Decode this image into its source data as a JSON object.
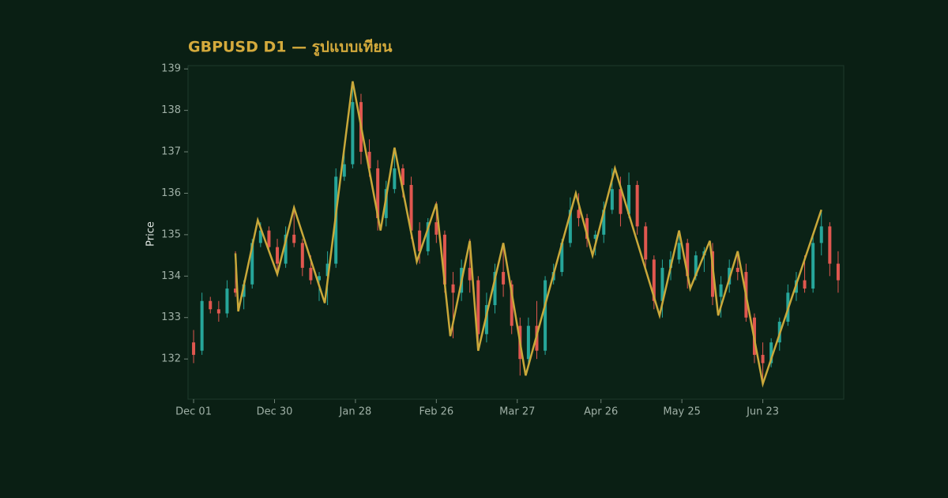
{
  "chart_data": {
    "type": "candlestick",
    "title": "GBPUSD D1 — รูปแบบเทียน",
    "ylabel": "Price",
    "up_color": "#26a69a",
    "down_color": "#e0574f",
    "x": [
      "Dec 01",
      "Dec 04",
      "Dec 07",
      "Dec 10",
      "Dec 13",
      "Dec 16",
      "Dec 19",
      "Dec 22",
      "Dec 25",
      "Dec 28",
      "Dec 31",
      "Jan 03",
      "Jan 06",
      "Jan 09",
      "Jan 12",
      "Jan 15",
      "Jan 18",
      "Jan 21",
      "Jan 24",
      "Jan 27",
      "Jan 30",
      "Feb 02",
      "Feb 05",
      "Feb 08",
      "Feb 11",
      "Feb 14",
      "Feb 17",
      "Feb 20",
      "Feb 23",
      "Feb 26",
      "Mar 01",
      "Mar 04",
      "Mar 07",
      "Mar 10",
      "Mar 13",
      "Mar 16",
      "Mar 19",
      "Mar 22",
      "Mar 25",
      "Mar 28",
      "Mar 31",
      "Apr 03",
      "Apr 06",
      "Apr 09",
      "Apr 12",
      "Apr 15",
      "Apr 18",
      "Apr 21",
      "Apr 24",
      "Apr 27",
      "Apr 30",
      "May 03",
      "May 06",
      "May 09",
      "May 12",
      "May 15",
      "May 18",
      "May 21",
      "May 24",
      "May 27",
      "May 30",
      "Jun 02",
      "Jun 05",
      "Jun 08",
      "Jun 11",
      "Jun 14",
      "Jun 17",
      "Jun 20",
      "Jun 23",
      "Jun 26",
      "Jun 29",
      "Jul 02",
      "Jul 05",
      "Jul 08",
      "Jul 11",
      "Jul 14",
      "Jul 17",
      "Jul 20"
    ],
    "open": [
      132.4,
      132.2,
      133.4,
      133.2,
      133.1,
      133.7,
      133.5,
      133.8,
      134.8,
      135.1,
      134.7,
      134.3,
      135.0,
      134.8,
      134.2,
      133.9,
      134.0,
      134.3,
      136.4,
      136.7,
      138.2,
      137.0,
      136.6,
      135.4,
      136.1,
      136.6,
      136.2,
      135.1,
      134.6,
      135.3,
      135.0,
      133.8,
      133.6,
      134.2,
      133.9,
      132.6,
      133.3,
      134.1,
      133.8,
      132.8,
      132.0,
      132.8,
      132.2,
      133.9,
      134.1,
      134.8,
      135.6,
      135.4,
      134.9,
      135.0,
      135.6,
      136.1,
      135.5,
      136.2,
      135.2,
      134.4,
      133.4,
      134.2,
      134.4,
      134.8,
      134.0,
      134.5,
      134.6,
      133.5,
      133.8,
      134.2,
      134.1,
      133.0,
      132.1,
      131.9,
      132.4,
      132.9,
      133.6,
      133.9,
      133.7,
      134.8,
      135.2,
      134.3
    ],
    "high": [
      132.7,
      133.6,
      133.5,
      133.4,
      133.9,
      134.6,
      133.9,
      134.9,
      135.3,
      135.2,
      134.9,
      135.2,
      135.7,
      134.9,
      134.5,
      134.1,
      134.6,
      136.6,
      137.0,
      138.7,
      138.4,
      137.3,
      136.8,
      136.3,
      137.1,
      136.7,
      136.4,
      135.3,
      135.4,
      135.8,
      135.1,
      134.1,
      134.4,
      134.9,
      134.0,
      133.6,
      134.3,
      134.8,
      133.9,
      133.0,
      133.0,
      133.4,
      134.0,
      134.3,
      134.9,
      135.9,
      136.0,
      135.5,
      135.1,
      135.8,
      136.6,
      136.4,
      136.5,
      136.3,
      135.3,
      134.5,
      134.4,
      134.6,
      135.1,
      134.9,
      134.6,
      134.7,
      134.8,
      134.0,
      134.4,
      134.6,
      134.3,
      133.1,
      132.4,
      132.5,
      133.0,
      133.8,
      134.1,
      134.5,
      135.0,
      135.6,
      135.3,
      134.6
    ],
    "low": [
      131.9,
      132.1,
      133.1,
      132.9,
      133.0,
      133.5,
      133.2,
      133.7,
      134.7,
      134.6,
      134.0,
      134.2,
      134.7,
      134.0,
      133.8,
      133.4,
      133.3,
      134.2,
      136.3,
      136.6,
      136.7,
      136.4,
      135.1,
      135.2,
      136.0,
      135.9,
      134.9,
      134.3,
      134.5,
      134.8,
      133.6,
      132.5,
      133.4,
      133.6,
      132.2,
      132.4,
      133.1,
      133.5,
      132.6,
      131.6,
      131.8,
      132.0,
      132.1,
      133.8,
      134.0,
      134.7,
      135.2,
      134.7,
      134.5,
      134.8,
      135.5,
      135.2,
      135.4,
      135.0,
      134.1,
      133.2,
      133.0,
      133.9,
      134.3,
      133.7,
      133.9,
      134.1,
      133.3,
      133.0,
      133.6,
      133.9,
      132.9,
      131.9,
      131.4,
      131.8,
      132.2,
      132.8,
      133.4,
      133.6,
      133.6,
      134.5,
      134.0,
      133.6
    ],
    "close": [
      132.1,
      133.4,
      133.2,
      133.1,
      133.7,
      133.6,
      133.8,
      134.8,
      135.1,
      134.7,
      134.3,
      135.0,
      134.8,
      134.2,
      133.9,
      134.0,
      134.3,
      136.4,
      136.7,
      138.2,
      137.0,
      136.6,
      135.4,
      136.1,
      136.6,
      136.2,
      135.1,
      134.6,
      135.3,
      135.0,
      133.8,
      133.6,
      134.2,
      133.9,
      132.6,
      133.3,
      134.1,
      133.8,
      132.8,
      132.0,
      132.8,
      132.2,
      133.9,
      134.1,
      134.8,
      135.6,
      135.4,
      134.9,
      135.0,
      135.6,
      136.1,
      135.5,
      136.2,
      135.2,
      134.4,
      133.4,
      134.2,
      134.4,
      134.8,
      134.0,
      134.5,
      134.6,
      133.5,
      133.8,
      134.2,
      134.1,
      133.0,
      132.1,
      131.9,
      132.4,
      132.9,
      133.6,
      133.9,
      133.7,
      134.8,
      135.2,
      134.3,
      133.9
    ],
    "zigzag": {
      "color": "#c9a83a",
      "x": [
        "Dec 16",
        "Dec 17",
        "Dec 24",
        "Dec 31",
        "Jan 06",
        "Jan 17",
        "Jan 27",
        "Feb 06",
        "Feb 11",
        "Feb 19",
        "Feb 26",
        "Mar 03",
        "Mar 10",
        "Mar 13",
        "Mar 22",
        "Mar 30",
        "Apr 17",
        "Apr 23",
        "May 01",
        "May 17",
        "May 24",
        "May 28",
        "Jun 04",
        "Jun 07",
        "Jun 14",
        "Jun 23",
        "Jul 14"
      ],
      "values": [
        134.55,
        133.15,
        135.35,
        134.05,
        135.65,
        133.35,
        138.7,
        135.1,
        137.1,
        134.35,
        135.75,
        132.55,
        134.85,
        132.2,
        134.8,
        131.6,
        136.0,
        134.5,
        136.6,
        133.05,
        135.1,
        133.7,
        134.85,
        133.05,
        134.6,
        131.4,
        135.6
      ]
    },
    "xlim": [
      "Nov 29",
      "Jul 22"
    ],
    "xticks": [
      "Dec 01",
      "Dec 30",
      "Jan 28",
      "Feb 26",
      "Mar 27",
      "Apr 26",
      "May 25",
      "Jun 23"
    ],
    "ylim": [
      131.03,
      139.08
    ],
    "yticks": [
      132,
      133,
      134,
      135,
      136,
      137,
      138,
      139
    ]
  }
}
